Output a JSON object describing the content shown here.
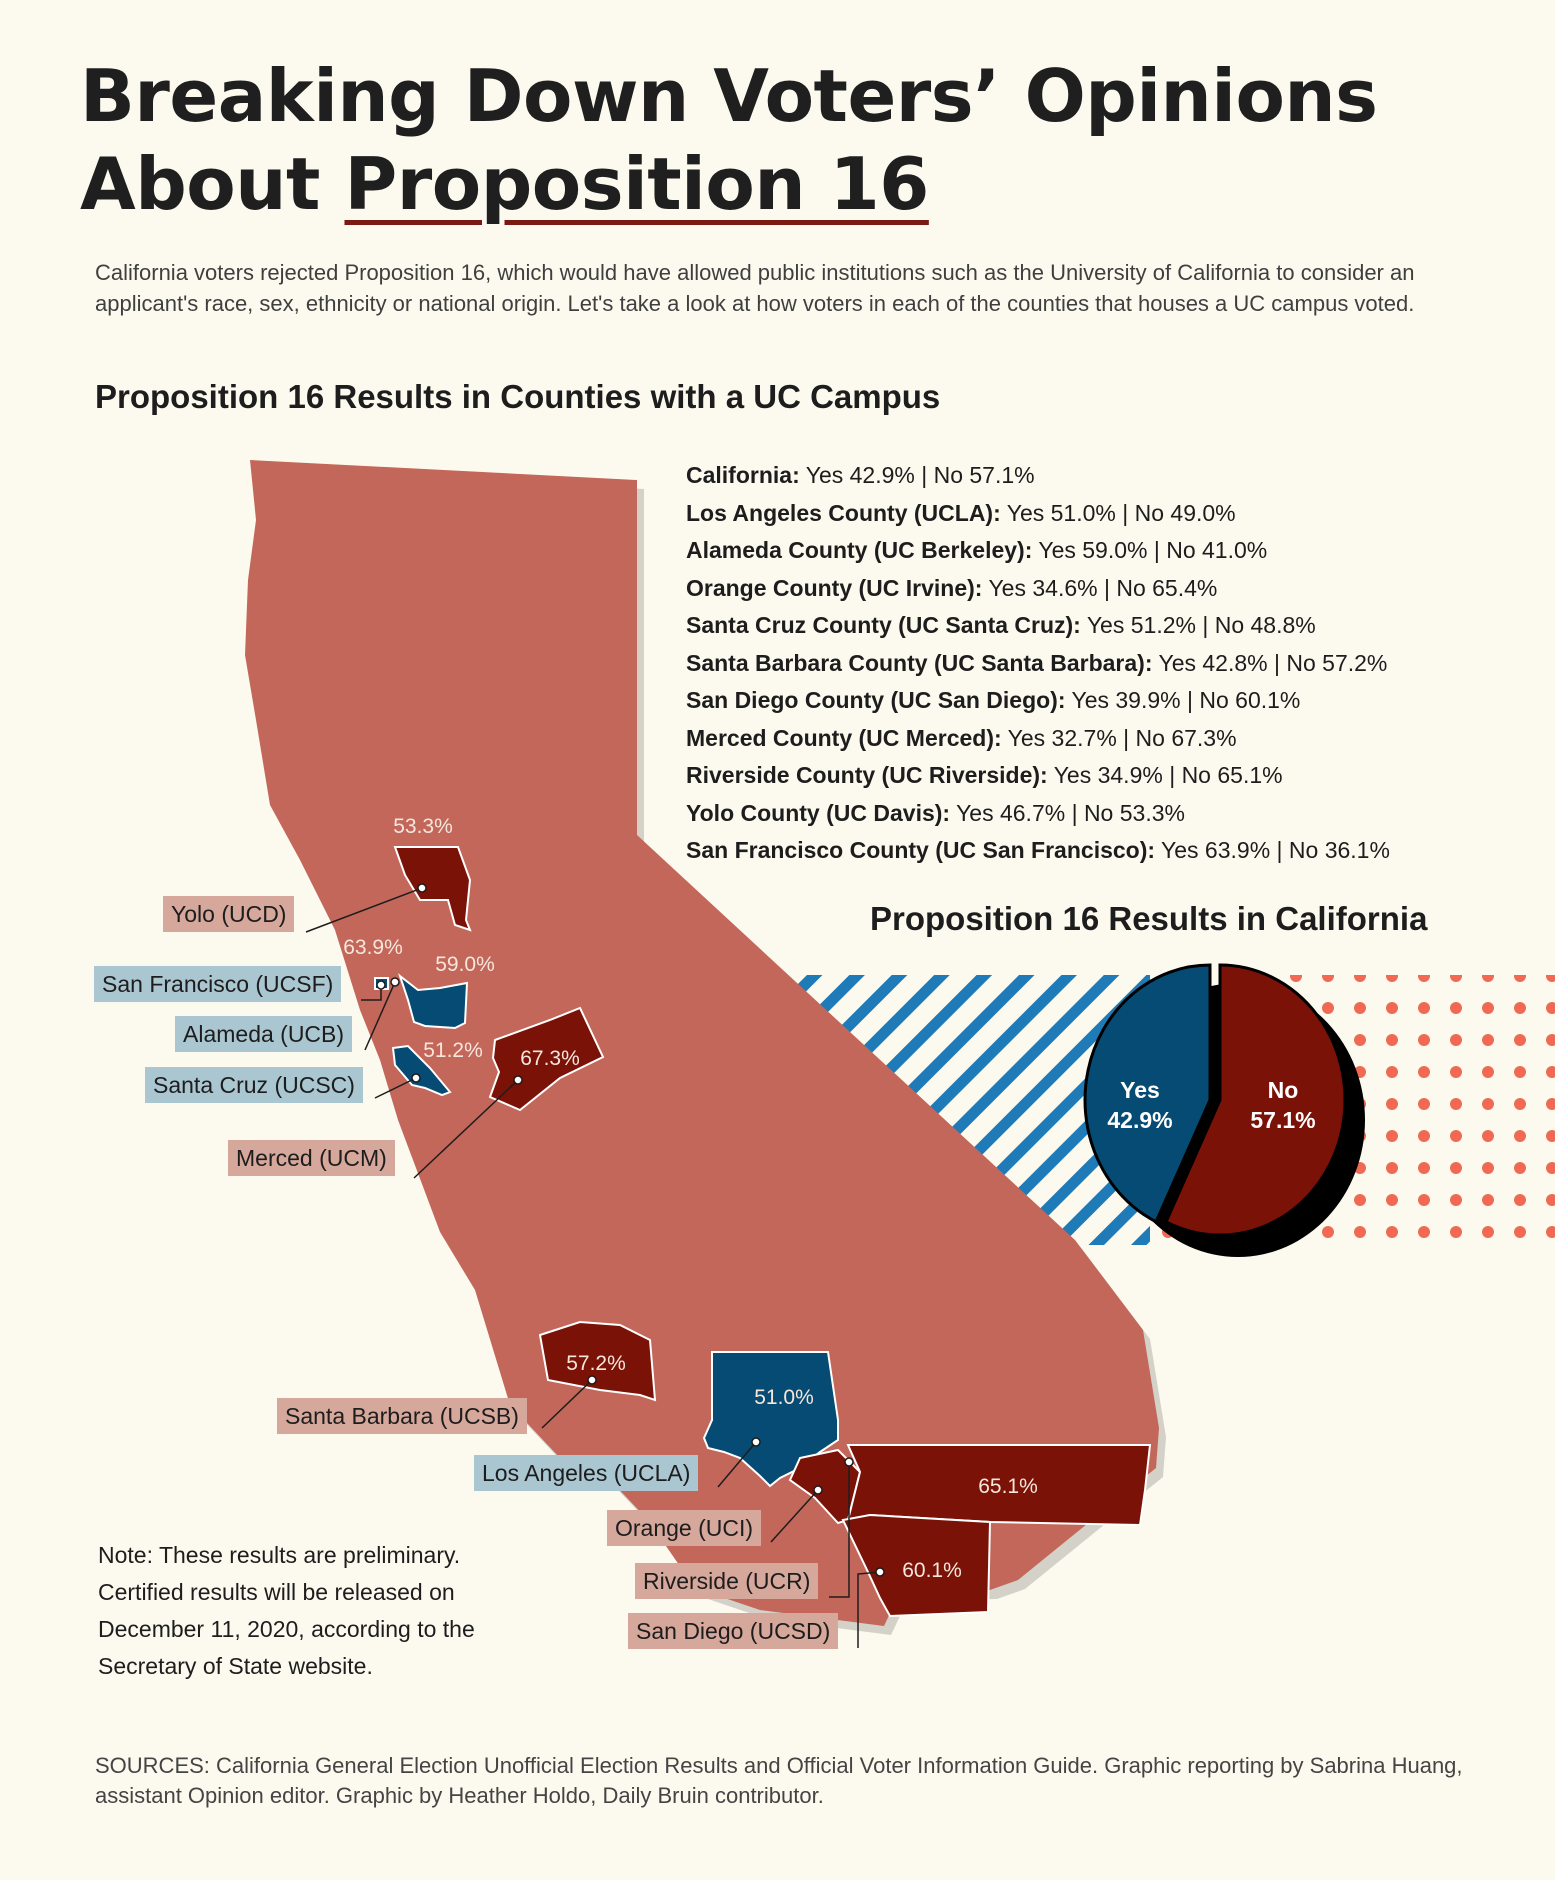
{
  "title": {
    "line1": "Breaking Down Voters’ Opinions",
    "line2_prefix": "About ",
    "line2_underlined": "Proposition 16"
  },
  "intro": "California voters rejected Proposition 16, which would have allowed public institutions such as the University of California to consider an applicant's race, sex, ethnicity or national origin. Let's take a look at how voters in each of the counties that houses a UC campus voted.",
  "map_heading": "Proposition 16 Results in Counties with a UC Campus",
  "results": [
    {
      "name": "California:",
      "result": "Yes 42.9% | No 57.1%"
    },
    {
      "name": "Los Angeles County (UCLA):",
      "result": "Yes 51.0% | No 49.0%"
    },
    {
      "name": "Alameda County (UC Berkeley):",
      "result": "Yes 59.0% | No 41.0%"
    },
    {
      "name": "Orange County (UC Irvine):",
      "result": "Yes 34.6% | No 65.4%"
    },
    {
      "name": "Santa Cruz County (UC Santa Cruz):",
      "result": "Yes 51.2% | No 48.8%"
    },
    {
      "name": "Santa Barbara County (UC Santa Barbara):",
      "result": "Yes 42.8% | No 57.2%"
    },
    {
      "name": "San Diego County (UC San Diego):",
      "result": "Yes 39.9% | No 60.1%"
    },
    {
      "name": "Merced County (UC Merced):",
      "result": "Yes 32.7% | No 67.3%"
    },
    {
      "name": "Riverside County (UC Riverside):",
      "result": "Yes 34.9% | No 65.1%"
    },
    {
      "name": "Yolo County (UC Davis):",
      "result": "Yes 46.7% | No 53.3%"
    },
    {
      "name": "San Francisco County (UC San Francisco):",
      "result": "Yes 63.9% | No 36.1%"
    }
  ],
  "pie_heading": "Proposition 16 Results in California",
  "chart_data": {
    "type": "pie",
    "title": "Proposition 16 Results in California",
    "slices": [
      {
        "label": "Yes",
        "value": 42.9,
        "display": "42.9%",
        "color": "#064b73"
      },
      {
        "label": "No",
        "value": 57.1,
        "display": "57.1%",
        "color": "#7a1208"
      }
    ]
  },
  "counties": {
    "yolo": {
      "label": "Yolo (UCD)",
      "pct": "53.3%"
    },
    "sf": {
      "label": "San Francisco (UCSF)",
      "pct": "63.9%"
    },
    "alameda": {
      "label": "Alameda (UCB)",
      "pct": "59.0%"
    },
    "santacruz": {
      "label": "Santa Cruz (UCSC)",
      "pct": "51.2%"
    },
    "merced": {
      "label": "Merced (UCM)",
      "pct": "67.3%"
    },
    "santabarbara": {
      "label": "Santa Barbara (UCSB)",
      "pct": "57.2%"
    },
    "losangeles": {
      "label": "Los Angeles (UCLA)",
      "pct": "51.0%"
    },
    "orange": {
      "label": "Orange (UCI)"
    },
    "riverside": {
      "label": "Riverside (UCR)",
      "pct": "65.1%"
    },
    "sandiego": {
      "label": "San Diego (UCSD)",
      "pct": "60.1%"
    }
  },
  "colors": {
    "state": "#c3675a",
    "no_county": "#7a1208",
    "yes_county": "#064b73",
    "stripes": "#1f7ab8",
    "dots": "#ef6a55",
    "background": "#fcfaef"
  },
  "note": "Note: These results are preliminary. Certified results will be released on December 11, 2020, according to the Secretary of State website.",
  "sources": "SOURCES: California General Election Unofficial Election Results and Official Voter Information Guide. Graphic reporting by Sabrina Huang, assistant Opinion editor. Graphic by Heather Holdo, Daily Bruin contributor."
}
